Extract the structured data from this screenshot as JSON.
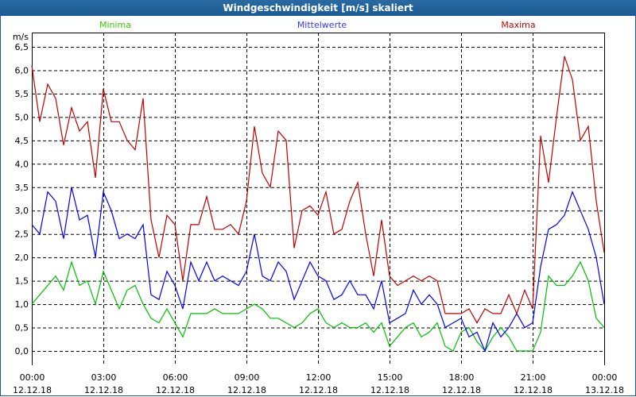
{
  "window": {
    "title": "Windgeschwindigkeit [m/s] skaliert"
  },
  "chart_data": {
    "type": "line",
    "title": "Windgeschwindigkeit [m/s] skaliert",
    "ylabel": "m/s",
    "ylim": [
      0,
      6.5
    ],
    "y_ticks": [
      "0,0",
      "0,5",
      "1,0",
      "1,5",
      "2,0",
      "2,5",
      "3,0",
      "3,5",
      "4,0",
      "4,5",
      "5,0",
      "5,5",
      "6,0",
      "6,5"
    ],
    "x_range_hours": [
      0,
      24
    ],
    "x_step_hours": 0.33333,
    "x_ticks": [
      {
        "time": "00:00",
        "date": "12.12.18"
      },
      {
        "time": "03:00",
        "date": "12.12.18"
      },
      {
        "time": "06:00",
        "date": "12.12.18"
      },
      {
        "time": "09:00",
        "date": "12.12.18"
      },
      {
        "time": "12:00",
        "date": "12.12.18"
      },
      {
        "time": "15:00",
        "date": "12.12.18"
      },
      {
        "time": "18:00",
        "date": "12.12.18"
      },
      {
        "time": "21:00",
        "date": "12.12.18"
      },
      {
        "time": "00:00",
        "date": "13.12.18"
      }
    ],
    "grid": true,
    "legend_placement": "top",
    "series": [
      {
        "name": "Minima",
        "color": "#00c000",
        "label_color": "#33cc00",
        "values": [
          1.0,
          1.2,
          1.4,
          1.6,
          1.3,
          1.9,
          1.4,
          1.5,
          1.0,
          1.7,
          1.3,
          0.9,
          1.3,
          1.4,
          1.0,
          0.7,
          0.6,
          0.9,
          0.6,
          0.3,
          0.8,
          0.8,
          0.8,
          0.9,
          0.8,
          0.8,
          0.8,
          0.9,
          1.0,
          0.9,
          0.7,
          0.7,
          0.6,
          0.5,
          0.6,
          0.8,
          0.9,
          0.6,
          0.5,
          0.6,
          0.5,
          0.5,
          0.6,
          0.4,
          0.6,
          0.1,
          0.3,
          0.5,
          0.6,
          0.3,
          0.4,
          0.6,
          0.1,
          0.0,
          0.4,
          0.5,
          0.2,
          0.0,
          0.3,
          0.5,
          0.3,
          0.0,
          0.0,
          0.0,
          0.4,
          1.6,
          1.4,
          1.4,
          1.6,
          1.9,
          1.5,
          0.7,
          0.5
        ]
      },
      {
        "name": "Mittelwerte",
        "color": "#0000ff",
        "label_color": "#3333ff",
        "values": [
          2.7,
          2.5,
          3.4,
          3.2,
          2.4,
          3.5,
          2.8,
          2.9,
          2.0,
          3.4,
          3.0,
          2.4,
          2.5,
          2.4,
          2.7,
          1.2,
          1.1,
          1.7,
          1.4,
          0.9,
          1.9,
          1.5,
          1.9,
          1.5,
          1.6,
          1.5,
          1.4,
          1.7,
          2.5,
          1.6,
          1.5,
          1.9,
          1.7,
          1.1,
          1.5,
          1.9,
          1.6,
          1.5,
          1.1,
          1.2,
          1.5,
          1.2,
          1.2,
          0.9,
          1.5,
          0.6,
          0.7,
          0.8,
          1.3,
          1.0,
          1.2,
          1.0,
          0.5,
          0.6,
          0.7,
          0.3,
          0.4,
          0.0,
          0.6,
          0.3,
          0.5,
          0.8,
          0.5,
          0.6,
          1.8,
          2.6,
          2.7,
          2.9,
          3.4,
          3.0,
          2.6,
          2.0,
          1.0
        ]
      },
      {
        "name": "Maxima",
        "color": "#c00000",
        "label_color": "#cc0000",
        "values": [
          6.1,
          4.9,
          5.7,
          5.4,
          4.4,
          5.2,
          4.7,
          4.9,
          3.7,
          5.6,
          4.9,
          4.9,
          4.5,
          4.3,
          5.4,
          2.8,
          2.0,
          2.9,
          2.7,
          1.5,
          2.7,
          2.7,
          3.3,
          2.6,
          2.6,
          2.7,
          2.5,
          3.2,
          4.8,
          3.8,
          3.5,
          4.7,
          4.5,
          2.2,
          3.0,
          3.1,
          2.9,
          3.4,
          2.5,
          2.6,
          3.2,
          3.6,
          2.5,
          1.6,
          2.8,
          1.6,
          1.4,
          1.5,
          1.6,
          1.5,
          1.6,
          1.5,
          0.8,
          0.8,
          0.8,
          0.9,
          0.6,
          0.9,
          0.8,
          0.8,
          1.2,
          0.8,
          1.3,
          0.9,
          4.6,
          3.6,
          5.0,
          6.3,
          5.8,
          4.5,
          4.8,
          3.2,
          2.1
        ]
      }
    ]
  }
}
